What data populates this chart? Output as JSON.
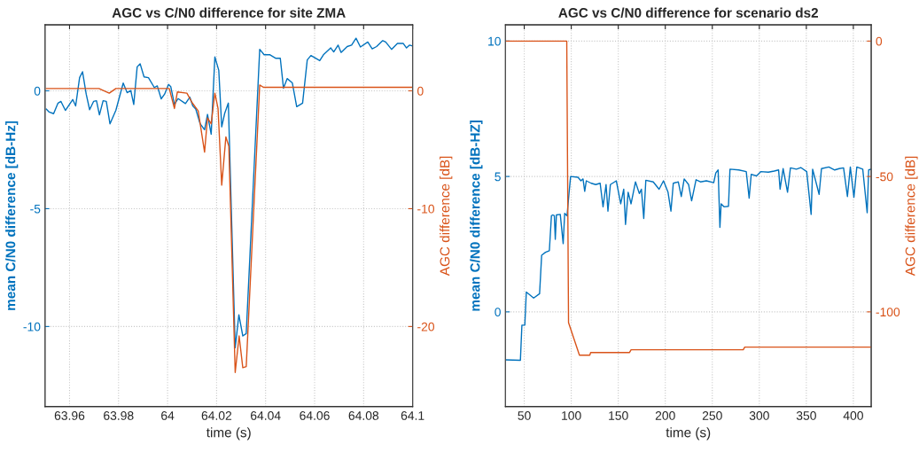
{
  "chart_data": [
    {
      "type": "line",
      "title": "AGC vs C/N0 difference for site ZMA",
      "xlabel": "time (s)",
      "ylabel": "mean C/N0 difference [dB-Hz]",
      "y2label": "AGC difference [dB]",
      "xlim": [
        63.95,
        64.1
      ],
      "xticks": [
        63.96,
        63.98,
        64,
        64.02,
        64.04,
        64.06,
        64.08,
        64.1
      ],
      "ylim": [
        -13.4,
        2.8
      ],
      "yticks": [
        -10,
        -5,
        0
      ],
      "y2lim": [
        -26.8,
        5.6
      ],
      "y2ticks": [
        -20,
        -10,
        0
      ],
      "grid": true,
      "line_style": "solid",
      "marker": "none",
      "series": [
        {
          "color": "#0072bd",
          "x": [
            63.9505,
            63.9517,
            63.9535,
            63.9553,
            63.9565,
            63.9583,
            63.9613,
            63.9625,
            63.9641,
            63.9653,
            63.9668,
            63.9682,
            63.9698,
            63.971,
            63.9722,
            63.9737,
            63.975,
            63.9765,
            63.9789,
            63.9819,
            63.9835,
            63.985,
            63.9862,
            63.9876,
            63.9888,
            63.9904,
            63.9922,
            63.9946,
            63.9958,
            63.9974,
            63.9988,
            64.0004,
            64.0013,
            64.0028,
            64.0043,
            64.0073,
            64.0091,
            64.0103,
            64.0115,
            64.0133,
            64.0151,
            64.0163,
            64.0178,
            64.0193,
            64.0209,
            64.0221,
            64.0233,
            64.0248,
            64.0276,
            64.0291,
            64.0307,
            64.0321,
            64.0376,
            64.0394,
            64.0418,
            64.0442,
            64.046,
            64.0473,
            64.0488,
            64.0509,
            64.0527,
            64.0551,
            64.057,
            64.0585,
            64.0621,
            64.0636,
            64.0666,
            64.0678,
            64.0696,
            64.0708,
            64.0733,
            64.0751,
            64.0769,
            64.0787,
            64.0817,
            64.0835,
            64.0853,
            64.0878,
            64.089,
            64.0914,
            64.0938,
            64.0962,
            64.0975,
            64.0987,
            64.1
          ],
          "values": [
            -0.77,
            -0.9,
            -0.97,
            -0.52,
            -0.45,
            -0.83,
            -0.37,
            -0.64,
            0.56,
            0.81,
            -0.14,
            -0.8,
            -0.45,
            -0.42,
            -1.02,
            -0.42,
            -0.45,
            -1.4,
            -0.83,
            0.33,
            -0.08,
            0.01,
            -0.58,
            1.02,
            1.15,
            0.59,
            0.56,
            0.14,
            0.21,
            -0.34,
            -0.14,
            0.27,
            0.18,
            -0.58,
            -0.33,
            -0.54,
            -0.27,
            -0.64,
            -0.77,
            -1.4,
            -1.65,
            -1.0,
            -1.84,
            1.44,
            0.87,
            -1.53,
            -0.96,
            -0.52,
            -10.9,
            -9.5,
            -10.4,
            -10.3,
            1.76,
            1.53,
            1.53,
            1.38,
            1.38,
            0.11,
            0.52,
            0.34,
            -0.67,
            -0.52,
            1.31,
            1.5,
            1.28,
            1.53,
            1.82,
            1.65,
            1.94,
            1.63,
            1.88,
            1.94,
            2.23,
            1.86,
            2.07,
            1.78,
            1.88,
            2.13,
            2.07,
            1.76,
            2.01,
            2.01,
            1.82,
            1.94,
            1.9
          ]
        },
        {
          "color": "#d95319",
          "axis": "y2",
          "x": [
            63.9505,
            63.972,
            63.9762,
            63.9789,
            64.0007,
            64.0028,
            64.004,
            64.0079,
            64.01,
            64.0125,
            64.0151,
            64.0163,
            64.0178,
            64.0193,
            64.0206,
            64.0221,
            64.0238,
            64.025,
            64.0276,
            64.0292,
            64.0307,
            64.0321,
            64.0376,
            64.0391,
            64.1
          ],
          "values": [
            0.2,
            0.2,
            -0.2,
            0.2,
            0.2,
            -1.5,
            -0.1,
            -0.2,
            -1.0,
            -1.7,
            -5.2,
            -2.3,
            -2.8,
            -0.2,
            -1.5,
            -8.0,
            -3.9,
            -4.7,
            -23.9,
            -20.8,
            -23.5,
            -23.4,
            0.5,
            0.3,
            0.3
          ]
        }
      ]
    },
    {
      "type": "line",
      "title": "AGC vs C/N0 difference for scenario ds2",
      "xlabel": "time (s)",
      "ylabel": "mean C/N0 difference [dB-HZ]",
      "y2label": "AGC difference [dB]",
      "xlim": [
        30,
        419
      ],
      "xticks": [
        50,
        100,
        150,
        200,
        250,
        300,
        350,
        400
      ],
      "ylim": [
        -3.5,
        10.6
      ],
      "yticks": [
        0,
        5,
        10
      ],
      "y2lim": [
        -135,
        6
      ],
      "y2ticks": [
        -100,
        -50,
        0
      ],
      "grid": true,
      "line_style": "solid",
      "marker": "none",
      "series": [
        {
          "color": "#0072bd",
          "x": [
            30.2,
            45.9,
            47.5,
            50.6,
            52.2,
            60,
            66.3,
            68.5,
            72.6,
            76.7,
            78.9,
            80.4,
            82,
            83,
            84.2,
            88.3,
            91.4,
            93,
            95.5,
            97.7,
            99.3,
            107.1,
            110.3,
            112.5,
            114.3,
            116,
            121.2,
            126,
            130.7,
            133.8,
            137,
            139,
            141.6,
            147.9,
            152.6,
            155.8,
            157.7,
            160.5,
            163.6,
            168.3,
            172.4,
            174.6,
            177.1,
            179.3,
            187.2,
            193.4,
            198.1,
            202.9,
            206,
            208.5,
            213.8,
            217,
            220.1,
            224.8,
            228,
            232.7,
            237.4,
            243.7,
            251.5,
            253.7,
            256.2,
            258.1,
            259.4,
            262.5,
            267.2,
            268.8,
            278.2,
            286.1,
            289.2,
            291.4,
            297,
            301.7,
            309.6,
            315.8,
            320.5,
            322.1,
            325.3,
            330,
            333.1,
            339.4,
            344.1,
            350.4,
            355.1,
            356.7,
            363.6,
            366.1,
            373.9,
            380.2,
            384.9,
            389.6,
            393.7,
            396.8,
            400.6,
            403.7,
            410,
            414.7,
            416.3,
            418.8
          ],
          "values": [
            -1.77,
            -1.79,
            -0.49,
            -0.49,
            0.73,
            0.51,
            0.67,
            2.09,
            2.2,
            2.26,
            3.55,
            3.58,
            3.55,
            2.68,
            3.58,
            3.6,
            2.52,
            3.64,
            3.55,
            4.42,
            5.0,
            4.97,
            4.84,
            4.91,
            4.45,
            4.84,
            4.75,
            4.7,
            4.75,
            3.88,
            4.7,
            3.72,
            4.7,
            4.84,
            3.99,
            4.53,
            3.23,
            4.42,
            3.99,
            4.8,
            4.37,
            4.53,
            3.45,
            4.86,
            4.8,
            4.53,
            4.84,
            4.42,
            3.72,
            4.75,
            4.8,
            4.26,
            4.91,
            4.7,
            4.1,
            4.88,
            4.8,
            4.84,
            4.77,
            5.13,
            5.24,
            3.12,
            3.99,
            3.88,
            3.9,
            5.27,
            5.24,
            5.18,
            4.2,
            5.08,
            5.02,
            5.18,
            5.16,
            5.2,
            5.24,
            4.53,
            5.29,
            4.42,
            5.32,
            5.27,
            5.33,
            5.18,
            3.6,
            5.27,
            4.34,
            5.29,
            5.35,
            5.24,
            5.29,
            5.32,
            4.26,
            5.35,
            4.23,
            5.35,
            5.27,
            3.66,
            5.24,
            5.27
          ]
        },
        {
          "color": "#d95319",
          "axis": "y2",
          "x": [
            30.2,
            95.2,
            97.1,
            108.7,
            119.7,
            120.6,
            162,
            163.6,
            282.9,
            284.5,
            418.8
          ],
          "values": [
            0,
            0,
            -104,
            -116,
            -116,
            -115,
            -115,
            -114,
            -114,
            -113,
            -113
          ]
        }
      ]
    }
  ]
}
